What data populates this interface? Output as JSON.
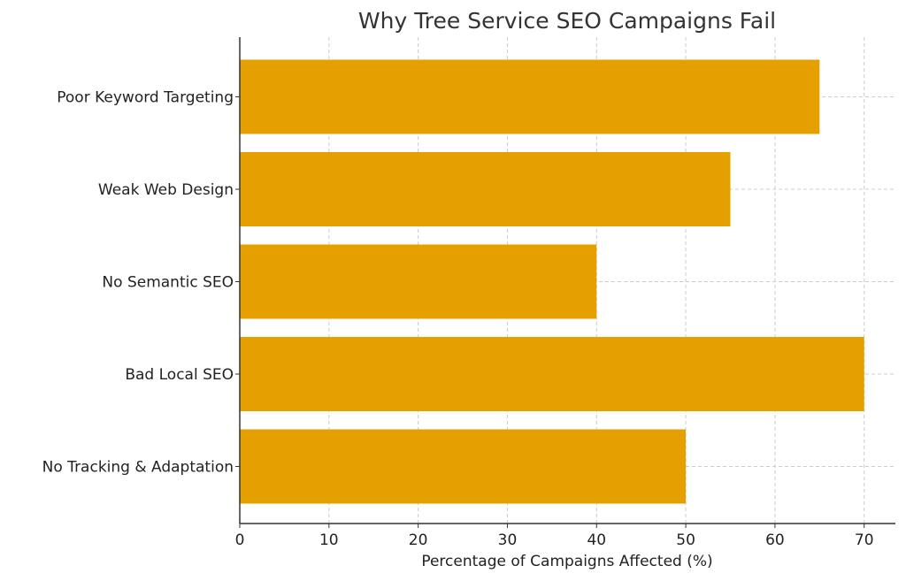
{
  "chart_data": {
    "type": "bar",
    "orientation": "horizontal",
    "title": "Why Tree Service SEO Campaigns Fail",
    "xlabel": "Percentage of Campaigns Affected (%)",
    "ylabel": "",
    "categories": [
      "Poor Keyword Targeting",
      "Weak Web Design",
      "No Semantic SEO",
      "Bad Local SEO",
      "No Tracking & Adaptation"
    ],
    "values": [
      65,
      55,
      40,
      70,
      50
    ],
    "xlim": [
      0,
      73.5
    ],
    "xticks": [
      0,
      10,
      20,
      30,
      40,
      50,
      60,
      70
    ],
    "grid": true,
    "bar_color": "#E5A000",
    "legend": null
  }
}
